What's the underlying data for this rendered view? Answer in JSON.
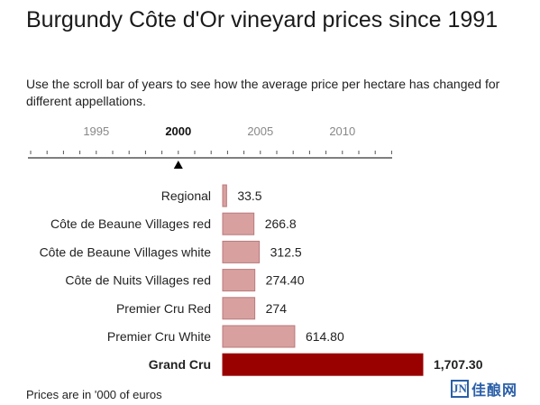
{
  "title": "Burgundy Côte d'Or vineyard prices since 1991",
  "subtitle": "Use the scroll bar of years to see how the average price per hectare has changed for different appellations.",
  "footnote": "Prices are in '000 of euros",
  "watermark": {
    "logo": "JN",
    "text": "佳酿网"
  },
  "timeline": {
    "ticks": [
      "1995",
      "2000",
      "2005",
      "2010"
    ],
    "selected": "2000",
    "range": [
      1991,
      2013
    ]
  },
  "colors": {
    "bar": "#d9a0a0",
    "bar_stroke": "#b87a7a",
    "highlight": "#990000"
  },
  "chart_data": {
    "type": "bar",
    "orientation": "horizontal",
    "categories": [
      "Regional",
      "Côte de Beaune Villages red",
      "Côte de Beaune Villages white",
      "Côte de Nuits Villages red",
      "Premier Cru Red",
      "Premier Cru White",
      "Grand Cru"
    ],
    "values": [
      33.5,
      266.8,
      312.5,
      274.4,
      274,
      614.8,
      1707.3
    ],
    "labels": [
      "33.5",
      "266.8",
      "312.5",
      "274.40",
      "274",
      "614.80",
      "1,707.30"
    ],
    "highlight": "Grand Cru",
    "xlim": [
      0,
      1707.3
    ]
  }
}
